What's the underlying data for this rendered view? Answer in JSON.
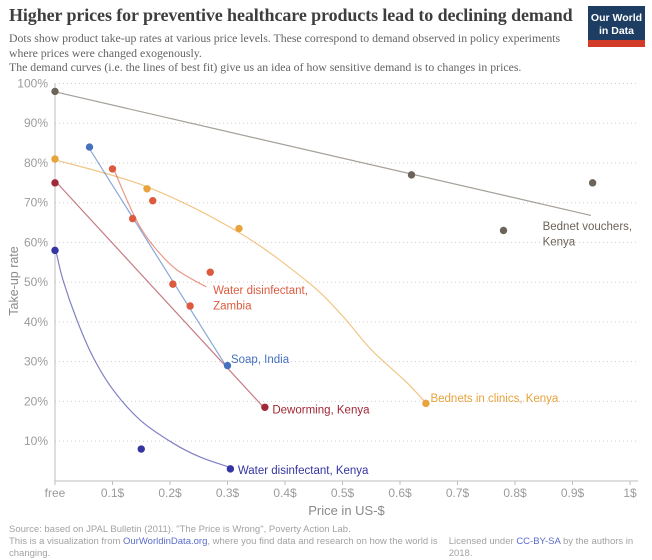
{
  "header": {
    "subtitle_line1": "Dots show product take-up rates at various price levels. These correspond to demand observed in policy experiments where prices were changed exogenously.",
    "subtitle_line2": "The demand curves (i.e. the lines of best fit) give us an idea of how sensitive demand is to changes in prices.",
    "logo": {
      "line1": "Our World",
      "line2": "in Data",
      "bg_color": "#1d3d63",
      "bar_color": "#d13b27"
    }
  },
  "chart_data": {
    "type": "scatter",
    "title": "Higher prices for preventive healthcare products lead to declining demand",
    "xlabel": "Price in US-$",
    "ylabel": "Take-up rate",
    "xlim": [
      0,
      1
    ],
    "ylim": [
      0,
      100
    ],
    "grid": "horizontal-dotted",
    "legend_position": "inline-labels",
    "x_ticks": [
      {
        "value": 0,
        "label": "free"
      },
      {
        "value": 0.1,
        "label": "0.1$"
      },
      {
        "value": 0.2,
        "label": "0.2$"
      },
      {
        "value": 0.3,
        "label": "0.3$"
      },
      {
        "value": 0.4,
        "label": "0.4$"
      },
      {
        "value": 0.5,
        "label": "0.5$"
      },
      {
        "value": 0.6,
        "label": "0.6$"
      },
      {
        "value": 0.7,
        "label": "0.7$"
      },
      {
        "value": 0.8,
        "label": "0.8$"
      },
      {
        "value": 0.9,
        "label": "0.9$"
      },
      {
        "value": 1,
        "label": "1$"
      }
    ],
    "y_ticks": [
      {
        "value": 100,
        "label": "100%"
      },
      {
        "value": 90,
        "label": "90%"
      },
      {
        "value": 80,
        "label": "80%"
      },
      {
        "value": 70,
        "label": "70%"
      },
      {
        "value": 60,
        "label": "60%"
      },
      {
        "value": 50,
        "label": "50%"
      },
      {
        "value": 40,
        "label": "40%"
      },
      {
        "value": 30,
        "label": "30%"
      },
      {
        "value": 20,
        "label": "20%"
      },
      {
        "value": 10,
        "label": "10%"
      }
    ],
    "series": [
      {
        "name": "Bednet vouchers, Kenya",
        "color": "#6d6459",
        "points": [
          [
            0,
            98
          ],
          [
            0.62,
            77
          ],
          [
            0.78,
            63
          ],
          [
            0.935,
            75
          ]
        ],
        "trend": [
          [
            0,
            97.9
          ],
          [
            0.932,
            66.8
          ]
        ],
        "label": {
          "lines": [
            "Bednet vouchers,",
            "Kenya"
          ],
          "price": 0.848,
          "takeup": 64.1
        }
      },
      {
        "name": "Bednets in clinics, Kenya",
        "color": "#e8a33d",
        "points": [
          [
            0,
            81
          ],
          [
            0.16,
            73.5
          ],
          [
            0.32,
            63.5
          ],
          [
            0.645,
            19.5
          ]
        ],
        "trend": [
          [
            0,
            80.8
          ],
          [
            0.16,
            74
          ],
          [
            0.32,
            62.5
          ],
          [
            0.44,
            50
          ],
          [
            0.5,
            41.5
          ],
          [
            0.55,
            33
          ],
          [
            0.61,
            25
          ],
          [
            0.645,
            19.6
          ]
        ],
        "label": {
          "lines": [
            "Bednets in clinics, Kenya"
          ],
          "price": 0.653,
          "takeup": 20.9
        }
      },
      {
        "name": "Water disinfectant, Zambia",
        "color": "#dc5b3e",
        "points": [
          [
            0.1,
            78.5
          ],
          [
            0.135,
            66
          ],
          [
            0.17,
            70.5
          ],
          [
            0.205,
            49.5
          ],
          [
            0.235,
            44
          ],
          [
            0.27,
            52.5
          ]
        ],
        "trend": [
          [
            0.103,
            78.2
          ],
          [
            0.125,
            70.7
          ],
          [
            0.148,
            63.9
          ],
          [
            0.177,
            58.1
          ],
          [
            0.212,
            53.1
          ],
          [
            0.263,
            48.8
          ]
        ],
        "label": {
          "lines": [
            "Water disinfectant,",
            "Zambia"
          ],
          "price": 0.275,
          "takeup": 48
        }
      },
      {
        "name": "Soap, India",
        "color": "#4571bf",
        "points": [
          [
            0.06,
            84
          ],
          [
            0.3,
            29
          ]
        ],
        "trend": [
          [
            0.059,
            83.8
          ],
          [
            0.297,
            29
          ]
        ],
        "label": {
          "lines": [
            "Soap, India"
          ],
          "price": 0.306,
          "takeup": 30.7
        }
      },
      {
        "name": "Deworming, Kenya",
        "color": "#a12836",
        "points": [
          [
            0,
            75
          ],
          [
            0.365,
            18.5
          ]
        ],
        "trend": [
          [
            0.002,
            75.2
          ],
          [
            0.364,
            18.3
          ]
        ],
        "label": {
          "lines": [
            "Deworming, Kenya"
          ],
          "price": 0.378,
          "takeup": 17.9
        }
      },
      {
        "name": "Water disinfectant, Kenya",
        "color": "#3434a2",
        "points": [
          [
            0,
            58
          ],
          [
            0.15,
            8
          ],
          [
            0.305,
            3
          ]
        ],
        "trend": [
          [
            0.002,
            57.6
          ],
          [
            0.014,
            50.5
          ],
          [
            0.038,
            40.5
          ],
          [
            0.066,
            31.2
          ],
          [
            0.101,
            22.9
          ],
          [
            0.148,
            15.3
          ],
          [
            0.205,
            9.5
          ],
          [
            0.252,
            6
          ],
          [
            0.304,
            3.4
          ]
        ],
        "label": {
          "lines": [
            "Water disinfectant, Kenya"
          ],
          "price": 0.318,
          "takeup": 2.7
        }
      }
    ]
  },
  "footer": {
    "source_line": "Source: based on JPAL Bulletin (2011). \"The Price is Wrong\", Poverty Action Lab.",
    "viz_prefix": "This is a visualization from ",
    "viz_link": "OurWorldinData.org",
    "viz_suffix": ", where you find data and research on how the world is changing.",
    "license_prefix": "Licensed under ",
    "license_link": "CC-BY-SA",
    "license_suffix": " by the authors in 2018."
  }
}
